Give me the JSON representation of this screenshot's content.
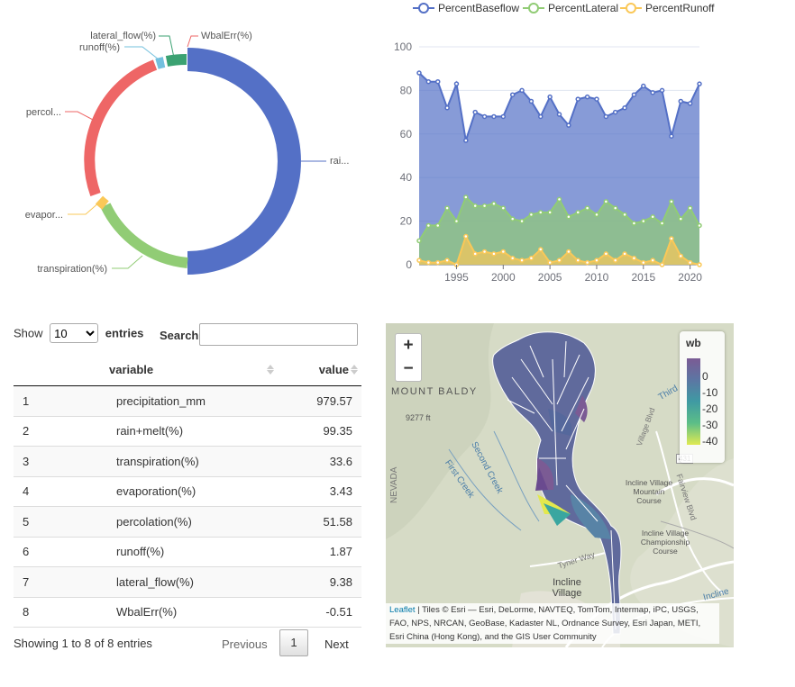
{
  "donut": {
    "labels": [
      "WbalErr(%)",
      "lateral_flow(%)",
      "runoff(%)",
      "percol...",
      "evapor...",
      "transpiration(%)",
      "rai..."
    ],
    "colors": {
      "rain": "#5470c6",
      "transpiration": "#91cc75",
      "evaporation": "#fac858",
      "percolation": "#ee6666",
      "runoff": "#73c0de",
      "lateral": "#3ba272"
    }
  },
  "chart_data": {
    "type": "area",
    "x": [
      1991,
      1992,
      1993,
      1994,
      1995,
      1996,
      1997,
      1998,
      1999,
      2000,
      2001,
      2002,
      2003,
      2004,
      2005,
      2006,
      2007,
      2008,
      2009,
      2010,
      2011,
      2012,
      2013,
      2014,
      2015,
      2016,
      2017,
      2018,
      2019,
      2020,
      2021
    ],
    "series": [
      {
        "name": "PercentBaseflow",
        "color": "#5470c6",
        "values": [
          88,
          84,
          84,
          72,
          83,
          57,
          70,
          68,
          68,
          68,
          78,
          80,
          75,
          68,
          77,
          69,
          64,
          76,
          77,
          76,
          68,
          70,
          72,
          78,
          82,
          79,
          80,
          59,
          75,
          74,
          83
        ]
      },
      {
        "name": "PercentLateral",
        "color": "#91cc75",
        "values": [
          11,
          18,
          18,
          26,
          20,
          31,
          27,
          27,
          28,
          26,
          21,
          20,
          23,
          24,
          24,
          30,
          22,
          24,
          26,
          23,
          29,
          26,
          23,
          19,
          20,
          22,
          19,
          29,
          21,
          26,
          18
        ]
      },
      {
        "name": "PercentRunoff",
        "color": "#fac858",
        "values": [
          2,
          1,
          1,
          2,
          0,
          13,
          5,
          6,
          5,
          6,
          3,
          2,
          3,
          7,
          1,
          2,
          6,
          2,
          1,
          2,
          5,
          2,
          5,
          3,
          1,
          2,
          0,
          12,
          4,
          1,
          0
        ]
      }
    ],
    "xticks": [
      "1995",
      "2000",
      "2005",
      "2010",
      "2015",
      "2020"
    ],
    "yticks": [
      "0",
      "20",
      "40",
      "60",
      "80",
      "100"
    ],
    "ylim": [
      0,
      100
    ],
    "legend_position": "top"
  },
  "table": {
    "length_label_pre": "Show",
    "length_value": "10",
    "length_label_post": "entries",
    "search_label": "Search:",
    "search_value": "",
    "columns": [
      "",
      "variable",
      "value"
    ],
    "rows": [
      [
        "1",
        "precipitation_mm",
        "979.57"
      ],
      [
        "2",
        "rain+melt(%)",
        "99.35"
      ],
      [
        "3",
        "transpiration(%)",
        "33.6"
      ],
      [
        "4",
        "evaporation(%)",
        "3.43"
      ],
      [
        "5",
        "percolation(%)",
        "51.58"
      ],
      [
        "6",
        "runoff(%)",
        "1.87"
      ],
      [
        "7",
        "lateral_flow(%)",
        "9.38"
      ],
      [
        "8",
        "WbalErr(%)",
        "-0.51"
      ]
    ],
    "info": "Showing 1 to 8 of 8 entries",
    "prev": "Previous",
    "page": "1",
    "next": "Next"
  },
  "map": {
    "zoom_in": "+",
    "zoom_out": "−",
    "legend_title": "wb",
    "legend_ticks": [
      "0",
      "-10",
      "-20",
      "-30",
      "-40"
    ],
    "labels": [
      "MOUNT BALDY",
      "9277 ft",
      "Second Creek",
      "First Creek",
      "NEVADA",
      "Incline Village Mountain Course",
      "Incline Village Championship Course",
      "Tyner Way",
      "Incline Village",
      "Third",
      "Fairview Blvd",
      "Incline",
      "431",
      "Village Blvd"
    ],
    "attribution_link": "Leaflet",
    "attribution_text": "| Tiles © Esri — Esri, DeLorme, NAVTEQ, TomTom, Intermap, iPC, USGS, FAO, NPS, NRCAN, GeoBase, Kadaster NL, Ordnance Survey, Esri Japan, METI, Esri China (Hong Kong), and the GIS User Community"
  }
}
